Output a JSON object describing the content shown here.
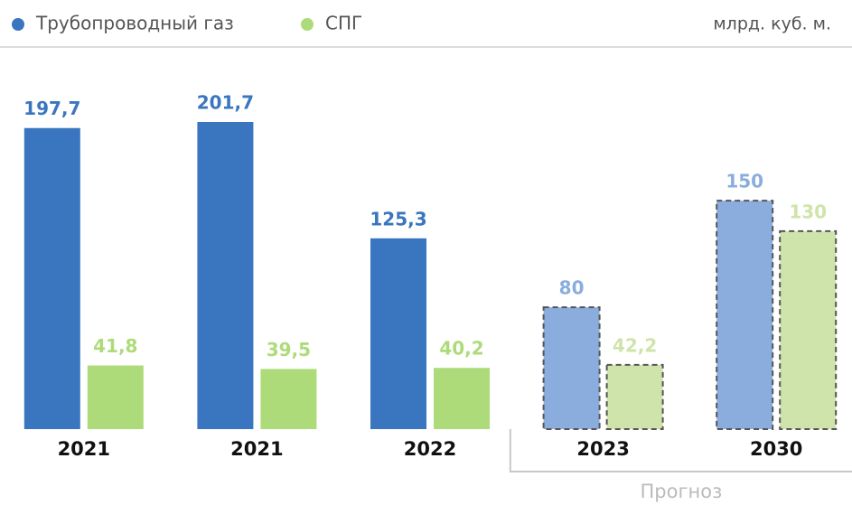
{
  "chart_data": {
    "type": "bar",
    "categories": [
      "2021",
      "2021",
      "2022",
      "2023",
      "2030"
    ],
    "series": [
      {
        "name": "Трубопроводный газ",
        "color": "#3a76bf",
        "forecast_color": "#8badde",
        "values": [
          197.7,
          201.7,
          125.3,
          80,
          150
        ],
        "value_labels": [
          "197,7",
          "201,7",
          "125,3",
          "80",
          "150"
        ]
      },
      {
        "name": "СПГ",
        "color": "#addb7a",
        "forecast_color": "#cfe4aa",
        "values": [
          41.8,
          39.5,
          40.2,
          42.2,
          130
        ],
        "value_labels": [
          "41,8",
          "39,5",
          "40,2",
          "42,2",
          "130"
        ]
      }
    ],
    "unit": "млрд. куб. м.",
    "forecast": {
      "label": "Прогноз",
      "start": 3
    }
  }
}
